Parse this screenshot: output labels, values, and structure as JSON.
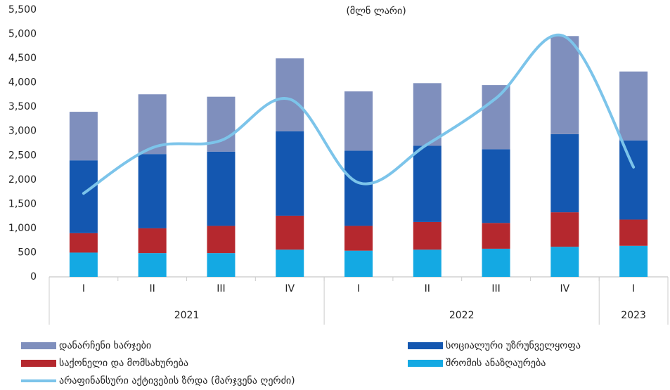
{
  "chart_data": {
    "type": "bar",
    "stacked": true,
    "title": "(მლნ ლარი)",
    "groups": [
      {
        "name": "2021",
        "categories": [
          "I",
          "II",
          "III",
          "IV"
        ]
      },
      {
        "name": "2022",
        "categories": [
          "I",
          "II",
          "III",
          "IV"
        ]
      },
      {
        "name": "2023",
        "categories": [
          "I"
        ]
      }
    ],
    "series": [
      {
        "name": "შრომის ანაზღაურება",
        "color": "#14a9e3",
        "values": [
          500,
          490,
          490,
          560,
          540,
          560,
          580,
          620,
          640
        ]
      },
      {
        "name": "საქონელი და მომსახურება",
        "color": "#b5282e",
        "values": [
          400,
          510,
          560,
          700,
          510,
          570,
          530,
          710,
          540
        ]
      },
      {
        "name": "სოციალური უზრუნველყოფა",
        "color": "#1457b0",
        "values": [
          1500,
          1530,
          1530,
          1740,
          1550,
          1570,
          1520,
          1610,
          1630
        ]
      },
      {
        "name": "დანარჩენი ხარჯები",
        "color": "#7f8fbd",
        "values": [
          1000,
          1230,
          1130,
          1500,
          1220,
          1290,
          1320,
          2020,
          1420
        ]
      },
      {
        "name": "არაფინანსური აქტივების ზრდა (მარჯვენა ღერძი)",
        "type": "line",
        "color": "#7cc4ea",
        "values": [
          1720,
          2660,
          2810,
          3660,
          1940,
          2730,
          3680,
          4950,
          2260
        ]
      }
    ],
    "ylim": [
      0,
      5500
    ],
    "yticks": [
      0,
      500,
      {
        "value": 1000,
        "label": "1,000"
      },
      {
        "value": 1500,
        "label": "1,500"
      },
      {
        "value": 2000,
        "label": "2,000"
      },
      {
        "value": 2500,
        "label": "2,500"
      },
      {
        "value": 3000,
        "label": "3,000"
      },
      {
        "value": 3500,
        "label": "3,500"
      },
      {
        "value": 4000,
        "label": "4,000"
      },
      {
        "value": 4500,
        "label": "4,500"
      },
      {
        "value": 5000,
        "label": "5,000"
      },
      {
        "value": 5500,
        "label": "5,500"
      }
    ]
  }
}
